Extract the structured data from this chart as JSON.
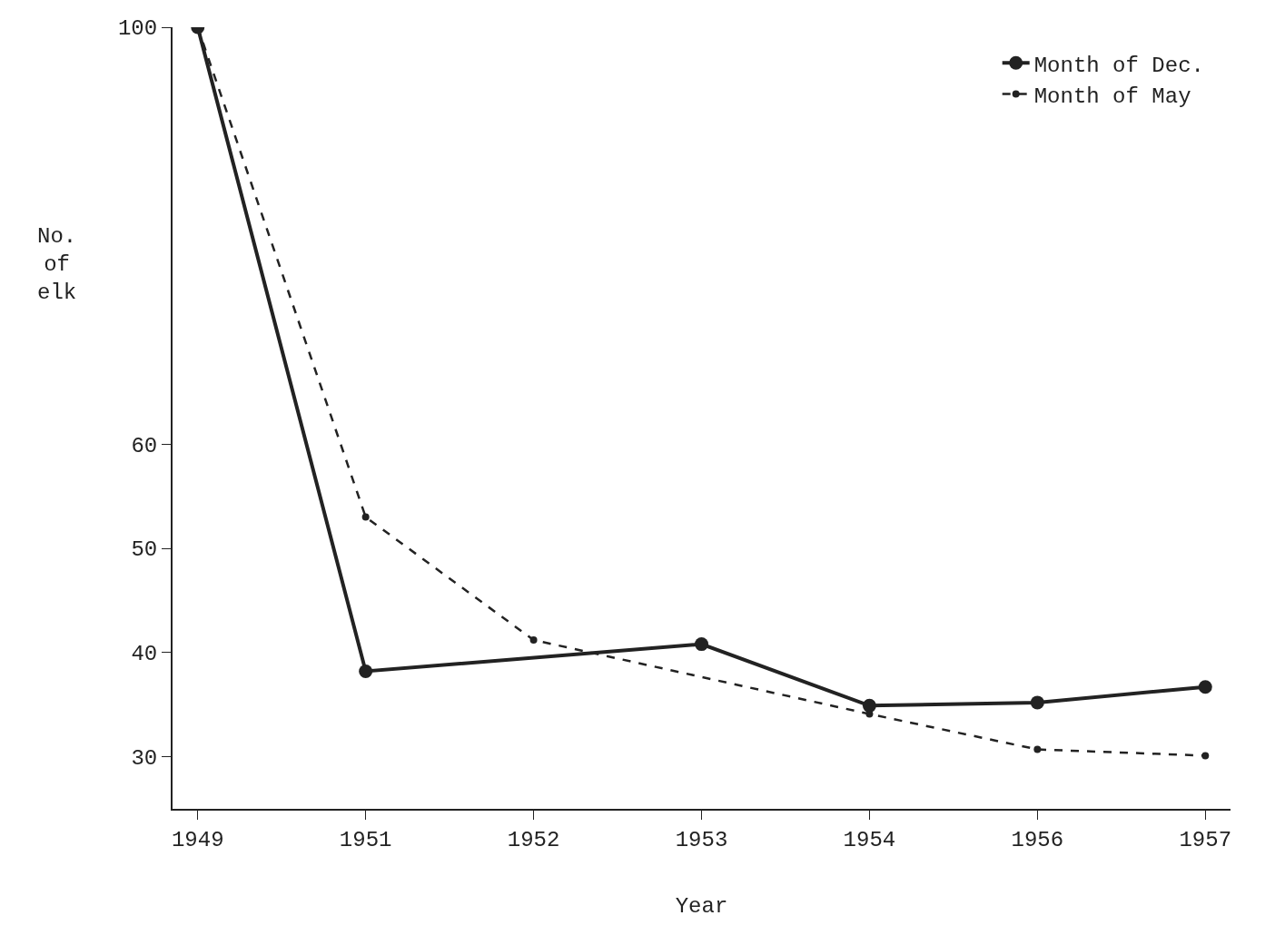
{
  "chart_data": {
    "type": "line",
    "xlabel": "Year",
    "ylabel": "No. of elk",
    "categories": [
      "1949",
      "1951",
      "1952",
      "1953",
      "1954",
      "1956",
      "1957"
    ],
    "series": [
      {
        "name": "Month of Dec.",
        "color": "#222222",
        "line_style": "solid",
        "values": [
          100,
          38.2,
          null,
          40.8,
          34.9,
          35.2,
          36.7
        ]
      },
      {
        "name": "Month of May",
        "color": "#222222",
        "line_style": "dashed",
        "values": [
          100,
          53.0,
          41.2,
          null,
          34.1,
          30.7,
          30.1
        ]
      }
    ],
    "ylim": [
      25,
      100
    ],
    "yticks": [
      30,
      40,
      50,
      60,
      100
    ],
    "grid": false,
    "legend": "top right",
    "marker": "circle"
  }
}
